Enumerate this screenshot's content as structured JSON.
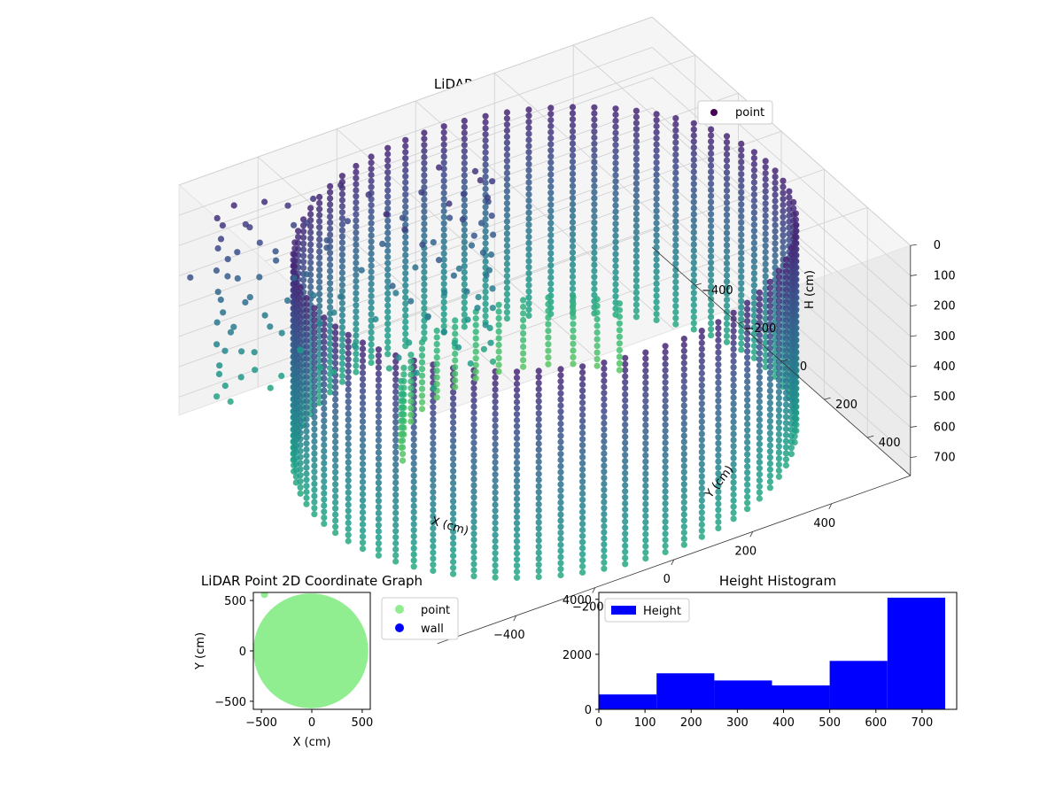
{
  "chart_data": [
    {
      "type": "scatter3d",
      "title": "LiDAR Point 3D Coordinate Graph",
      "xlabel": "X (cm)",
      "ylabel": "Y (cm)",
      "zlabel": "H (cm)",
      "legend": [
        "point"
      ],
      "legend_loc": "upper right",
      "colormap": "viridis",
      "xlim": [
        -600,
        600
      ],
      "ylim": [
        -600,
        600
      ],
      "zlim": [
        0,
        760
      ],
      "zinverted": true,
      "xticks": [
        "−400",
        "−200",
        "0",
        "200",
        "400"
      ],
      "yticks": [
        "−400",
        "−200",
        "0",
        "200",
        "400"
      ],
      "zticks": [
        "0",
        "100",
        "200",
        "300",
        "400",
        "500",
        "600",
        "700"
      ],
      "grid": true,
      "point_color": "#440154",
      "wall": {
        "radius": 560,
        "h_top": 80,
        "h_bottom": 760
      },
      "interior_object_h": [
        40,
        700
      ]
    },
    {
      "type": "scatter",
      "title": "LiDAR Point 2D Coordinate Graph",
      "xlabel": "X (cm)",
      "ylabel": "Y (cm)",
      "xlim": [
        -580,
        580
      ],
      "ylim": [
        -580,
        580
      ],
      "xticks": [
        "−500",
        "0",
        "500"
      ],
      "yticks": [
        "−500",
        "0",
        "500"
      ],
      "legend_loc": "outside upper right",
      "series": [
        {
          "name": "point",
          "color": "#90ee90",
          "disk_center": [
            -10,
            0
          ],
          "disk_radius": 570,
          "outlier": [
            -470,
            560
          ]
        },
        {
          "name": "wall",
          "color": "#0000ff"
        }
      ]
    },
    {
      "type": "bar",
      "title": "Height Histogram",
      "legend": [
        "Height"
      ],
      "legend_loc": "upper left",
      "color": "#0000ff",
      "bin_edges": [
        0,
        125,
        250,
        375,
        500,
        625,
        750
      ],
      "values": [
        540,
        1310,
        1050,
        870,
        1760,
        4060
      ],
      "xlim": [
        0,
        775
      ],
      "ylim": [
        0,
        4250
      ],
      "xticks": [
        "0",
        "100",
        "200",
        "300",
        "400",
        "500",
        "600",
        "700"
      ],
      "yticks": [
        "0",
        "2000",
        "4000"
      ]
    }
  ]
}
